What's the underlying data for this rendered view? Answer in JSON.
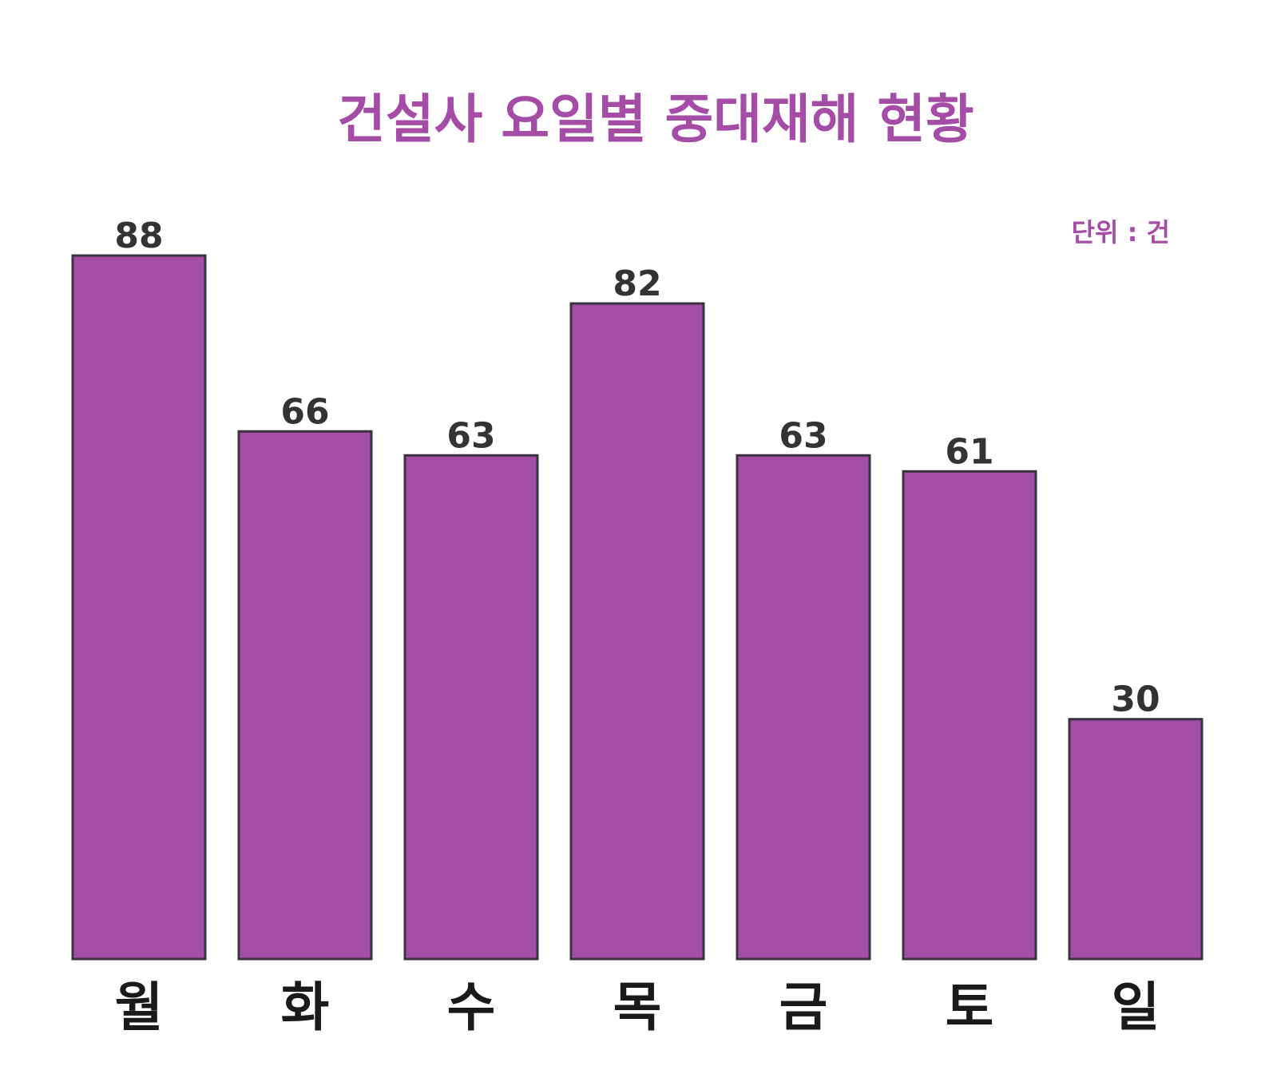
{
  "chart_data": {
    "type": "bar",
    "title": "건설사 요일별 중대재해 현황",
    "unit_label": "단위 : 건",
    "categories": [
      "월",
      "화",
      "수",
      "목",
      "금",
      "토",
      "일"
    ],
    "values": [
      88,
      66,
      63,
      82,
      63,
      61,
      30
    ],
    "ylim": [
      0,
      88
    ],
    "grid": false,
    "legend": "none",
    "colors": {
      "bar_fill": "#a54da6",
      "bar_stroke": "#3d3040",
      "title": "#a54da6",
      "unit_label": "#a54da6",
      "value_label": "#333333",
      "category_label": "#1a1a1a"
    }
  }
}
